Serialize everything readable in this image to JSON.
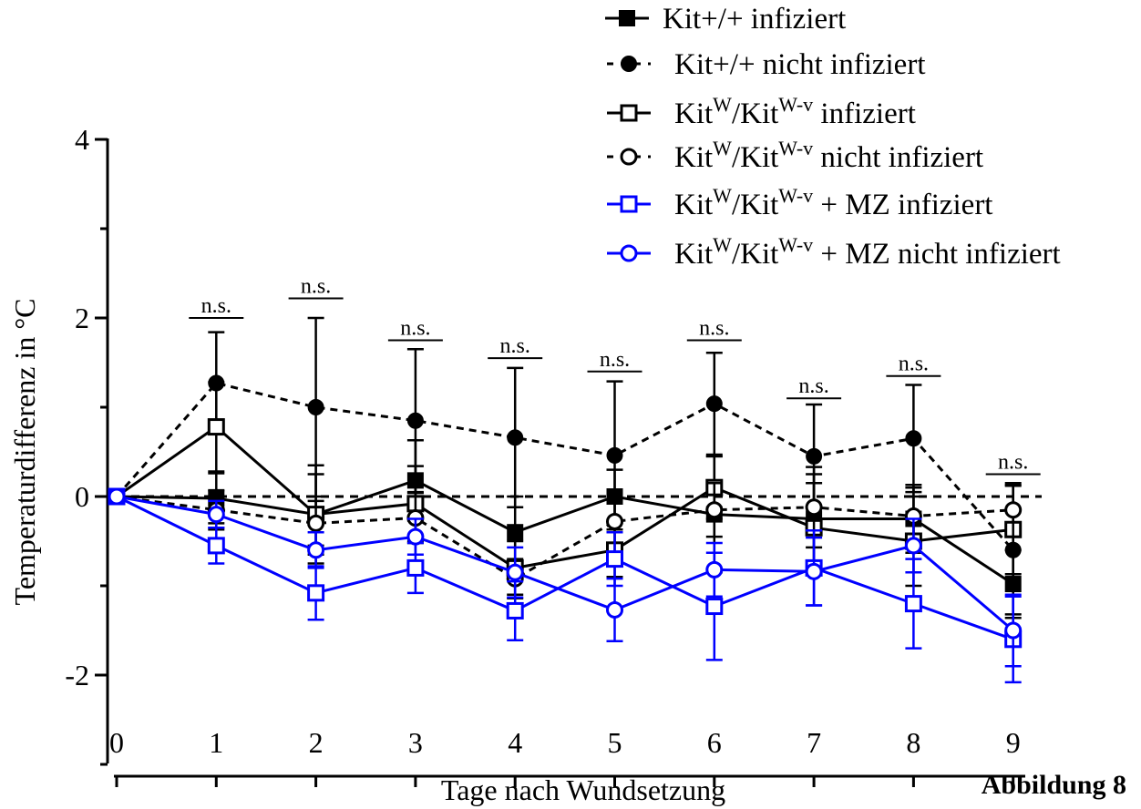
{
  "chart_data": {
    "type": "line",
    "xlabel": "Tage nach Wundsetzung",
    "ylabel": "Temperaturdifferenz in °C",
    "x": [
      0,
      1,
      2,
      3,
      4,
      5,
      6,
      7,
      8,
      9
    ],
    "x_tick_labels": [
      "0",
      "1",
      "2",
      "3",
      "4",
      "5",
      "6",
      "7",
      "8",
      "9"
    ],
    "y_ticks": [
      4,
      2,
      0,
      -2
    ],
    "y_tick_labels": [
      "4",
      "2",
      "0",
      "-2"
    ],
    "ylim": [
      -3,
      4
    ],
    "legend_position": "top-right",
    "caption": "Abbildung 8",
    "significance": {
      "label": "n.s.",
      "days": [
        1,
        2,
        3,
        4,
        5,
        6,
        7,
        8,
        9
      ],
      "heights": [
        2.0,
        2.22,
        1.75,
        1.55,
        1.4,
        1.75,
        1.1,
        1.35,
        0.25
      ]
    },
    "series": [
      {
        "name_parts": [
          "Kit+/+  infiziert"
        ],
        "color": "#000000",
        "marker": "square-filled",
        "dash": "solid",
        "values": [
          0,
          -0.02,
          -0.2,
          0.18,
          -0.4,
          0.0,
          -0.2,
          -0.25,
          -0.25,
          -0.98
        ],
        "errors": [
          0,
          0.28,
          0.45,
          0.45,
          0.4,
          0.3,
          0.65,
          0.5,
          0.38,
          0.38
        ]
      },
      {
        "name_parts": [
          "Kit+/+ nicht infiziert"
        ],
        "color": "#000000",
        "marker": "circle-filled",
        "dash": "dashed",
        "values": [
          0,
          1.27,
          1.0,
          0.85,
          0.66,
          0.46,
          1.04,
          0.45,
          0.65,
          -0.6
        ],
        "errors": [
          0,
          0.57,
          1.0,
          0.8,
          0.78,
          0.83,
          0.57,
          0.58,
          0.6,
          0.72
        ]
      },
      {
        "name_parts": [
          "Kit",
          "W",
          "/Kit",
          "W-v",
          " infiziert"
        ],
        "color": "#000000",
        "marker": "square-open",
        "dash": "solid",
        "values": [
          0,
          0.78,
          -0.2,
          -0.08,
          -0.8,
          -0.6,
          0.1,
          -0.35,
          -0.5,
          -0.37
        ],
        "errors": [
          0,
          0.5,
          0.55,
          0.42,
          0.3,
          0.3,
          0.35,
          0.5,
          0.5,
          0.5
        ]
      },
      {
        "name_parts": [
          "Kit",
          "W",
          "/Kit",
          "W-v",
          " nicht infiziert"
        ],
        "color": "#000000",
        "marker": "circle-open",
        "dash": "dashed",
        "values": [
          0,
          -0.15,
          -0.3,
          -0.24,
          -0.92,
          -0.28,
          -0.15,
          -0.12,
          -0.22,
          -0.15
        ],
        "errors": [
          0,
          0.22,
          0.25,
          0.28,
          0.22,
          0.35,
          0.3,
          0.45,
          0.32,
          0.3
        ]
      },
      {
        "name_parts": [
          "Kit",
          "W",
          "/Kit",
          "W-v",
          " + MZ infiziert"
        ],
        "color": "#0000ff",
        "marker": "square-open",
        "dash": "solid",
        "values": [
          0,
          -0.55,
          -1.08,
          -0.8,
          -1.28,
          -0.7,
          -1.23,
          -0.8,
          -1.2,
          -1.6
        ],
        "errors": [
          0,
          0.2,
          0.3,
          0.28,
          0.33,
          0.3,
          0.6,
          0.42,
          0.5,
          0.48
        ]
      },
      {
        "name_parts": [
          "Kit",
          "W",
          "/Kit",
          "W-v",
          " + MZ nicht infiziert"
        ],
        "color": "#0000ff",
        "marker": "circle-open",
        "dash": "solid",
        "values": [
          0,
          -0.2,
          -0.6,
          -0.45,
          -0.85,
          -1.27,
          -0.82,
          -0.84,
          -0.55,
          -1.5
        ],
        "errors": [
          0,
          0.15,
          0.2,
          0.2,
          0.28,
          0.35,
          0.3,
          0.38,
          0.3,
          0.4
        ]
      }
    ]
  }
}
